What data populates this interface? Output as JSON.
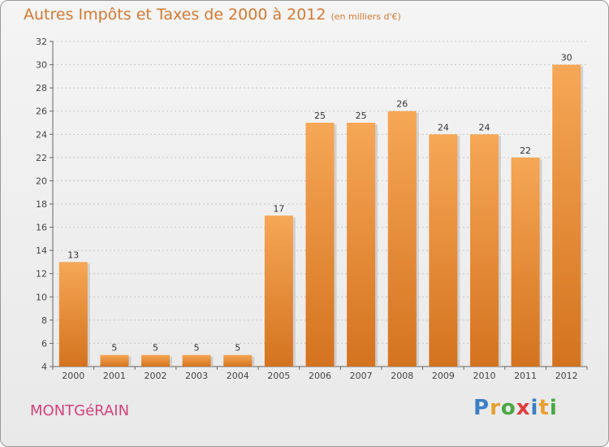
{
  "header": {
    "title": "Autres Impôts et Taxes de 2000 à 2012",
    "unit": "(en milliers d'€)"
  },
  "footer": {
    "commune": "MONTGéRAIN",
    "logo_text": "Proxiti",
    "logo_letters": [
      {
        "char": "P",
        "color": "#3b7fc4"
      },
      {
        "char": "r",
        "color": "#e8a030"
      },
      {
        "char": "o",
        "color": "#4aa844"
      },
      {
        "char": "x",
        "color": "#e03c3c"
      },
      {
        "char": "i",
        "color": "#3b7fc4"
      },
      {
        "char": "t",
        "color": "#e8a030"
      },
      {
        "char": "i",
        "color": "#4aa844"
      }
    ]
  },
  "colors": {
    "bar_light": "#f6a756",
    "bar_dark": "#d4731f",
    "grid": "#c8c8c8",
    "axis": "#666666"
  },
  "chart_data": {
    "type": "bar",
    "title": "Autres Impôts et Taxes de 2000 à 2012",
    "subtitle": "(en milliers d'€)",
    "xlabel": "",
    "ylabel": "",
    "categories": [
      "2000",
      "2001",
      "2002",
      "2003",
      "2004",
      "2005",
      "2006",
      "2007",
      "2008",
      "2009",
      "2010",
      "2011",
      "2012"
    ],
    "values": [
      13,
      5,
      5,
      5,
      5,
      17,
      25,
      25,
      26,
      24,
      24,
      22,
      30
    ],
    "ylim": [
      4,
      32
    ],
    "yticks": [
      4,
      6,
      8,
      10,
      12,
      14,
      16,
      18,
      20,
      22,
      24,
      26,
      28,
      30,
      32
    ],
    "grid": true,
    "legend": "none"
  }
}
